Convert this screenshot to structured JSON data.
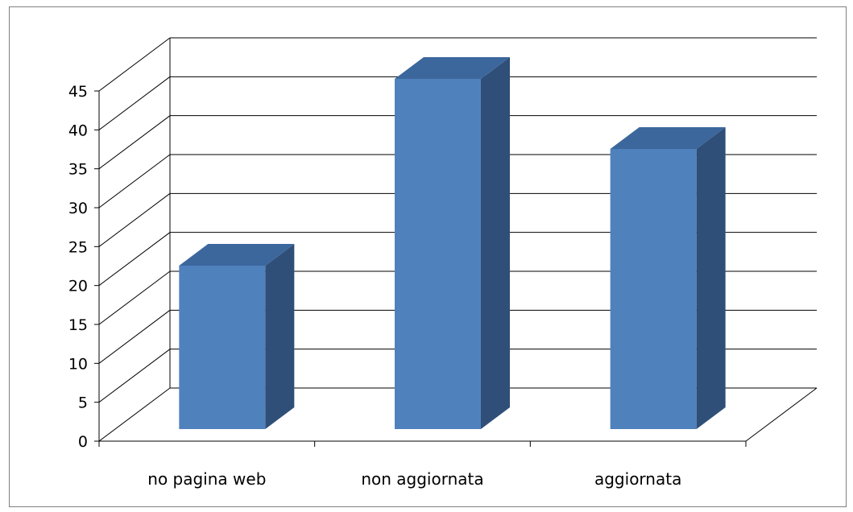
{
  "chart_data": {
    "type": "bar",
    "categories": [
      "no pagina web",
      "non aggiornata",
      "aggiornata"
    ],
    "values": [
      21,
      45,
      36
    ],
    "ylim": [
      0,
      45
    ],
    "yticks": [
      0,
      5,
      10,
      15,
      20,
      25,
      30,
      35,
      40,
      45
    ],
    "grid": true,
    "three_d": true,
    "colors": {
      "bar_front": "#4f81bd",
      "bar_side": "#2f4f78",
      "bar_top": "#3c679d",
      "grid": "#000000"
    }
  }
}
